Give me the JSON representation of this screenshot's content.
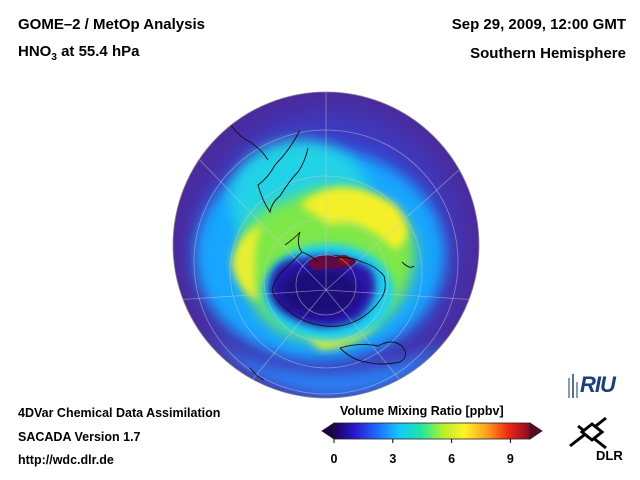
{
  "header": {
    "left_line1": "GOME–2 / MetOp Analysis",
    "left_line2_prefix": "HNO",
    "left_line2_sub": "3",
    "left_line2_suffix": " at 55.4 hPa",
    "right_line1": "Sep 29, 2009, 12:00 GMT",
    "right_line2": "Southern Hemisphere"
  },
  "footer": {
    "line1": "4DVar Chemical Data Assimilation",
    "line2": "SACADA Version 1.7",
    "line3": "http://wdc.dlr.de"
  },
  "colorbar": {
    "title": "Volume Mixing Ratio [ppbv]",
    "ticks": [
      "0",
      "3",
      "6",
      "9"
    ],
    "range": [
      0,
      10
    ],
    "colors": [
      "#1a005a",
      "#2a1ad0",
      "#1e6cff",
      "#12c8ff",
      "#20e6a0",
      "#b4f02a",
      "#fff22a",
      "#ffa01e",
      "#f02814",
      "#8a0a22"
    ]
  },
  "logos": {
    "riu": "RIU",
    "dlr": "DLR"
  },
  "colors": {
    "background": "#ffffff",
    "ocean_dark": "#3b2fa8",
    "coast": "#1a1a1a"
  }
}
